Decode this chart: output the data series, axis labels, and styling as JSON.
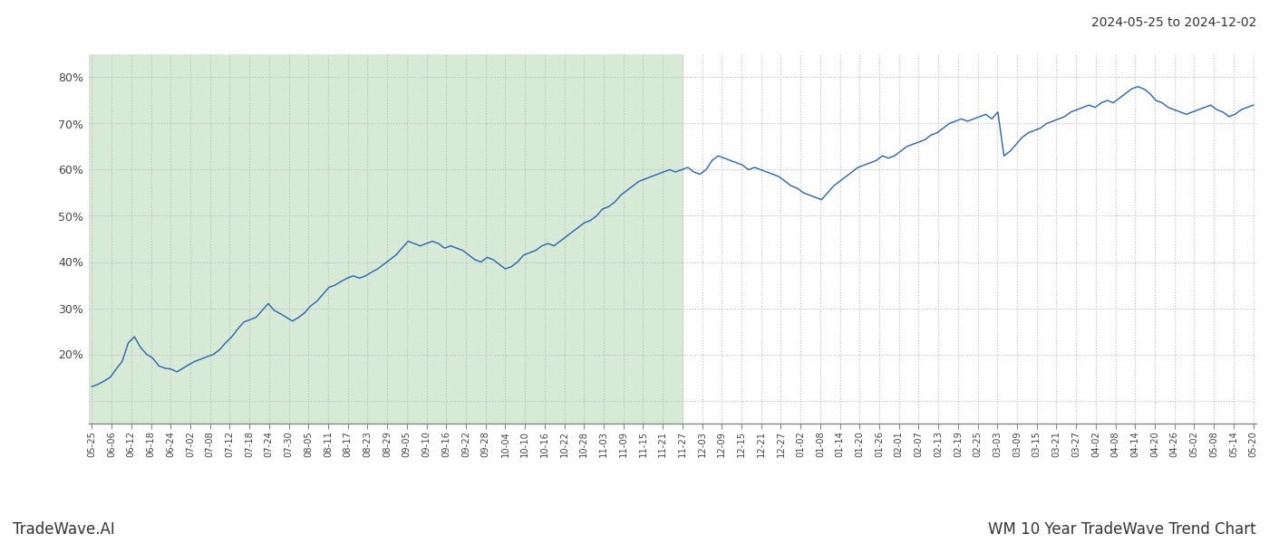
{
  "title_top_right": "2024-05-25 to 2024-12-02",
  "footer_left": "TradeWave.AI",
  "footer_right": "WM 10 Year TradeWave Trend Chart",
  "line_color": "#2464b4",
  "shading_color": "#d6ead6",
  "bg_color": "#ffffff",
  "grid_color": "#bbbbbb",
  "ylim": [
    5,
    85
  ],
  "ytick_positions": [
    10,
    20,
    30,
    40,
    50,
    60,
    70,
    80
  ],
  "ytick_labels": [
    "",
    "20%",
    "30%",
    "40%",
    "50%",
    "60%",
    "70%",
    "80%"
  ],
  "x_labels": [
    "05-25",
    "06-06",
    "06-12",
    "06-18",
    "06-24",
    "07-02",
    "07-08",
    "07-12",
    "07-18",
    "07-24",
    "07-30",
    "08-05",
    "08-11",
    "08-17",
    "08-23",
    "08-29",
    "09-05",
    "09-10",
    "09-16",
    "09-22",
    "09-28",
    "10-04",
    "10-10",
    "10-16",
    "10-22",
    "10-28",
    "11-03",
    "11-09",
    "11-15",
    "11-21",
    "11-27",
    "12-03",
    "12-09",
    "12-15",
    "12-21",
    "12-27",
    "01-02",
    "01-08",
    "01-14",
    "01-20",
    "01-26",
    "02-01",
    "02-07",
    "02-13",
    "02-19",
    "02-25",
    "03-03",
    "03-09",
    "03-15",
    "03-21",
    "03-27",
    "04-02",
    "04-08",
    "04-14",
    "04-20",
    "04-26",
    "05-02",
    "05-08",
    "05-14",
    "05-20"
  ],
  "shade_end_label": "11-27",
  "values": [
    13.0,
    13.5,
    14.2,
    15.0,
    16.8,
    18.5,
    22.5,
    23.8,
    21.5,
    20.0,
    19.2,
    17.5,
    17.0,
    16.8,
    16.2,
    17.0,
    17.8,
    18.5,
    19.0,
    19.5,
    20.0,
    21.0,
    22.5,
    23.8,
    25.5,
    27.0,
    27.5,
    28.0,
    29.5,
    31.0,
    29.5,
    28.8,
    28.0,
    27.2,
    28.0,
    29.0,
    30.5,
    31.5,
    33.0,
    34.5,
    35.0,
    35.8,
    36.5,
    37.0,
    36.5,
    37.0,
    37.8,
    38.5,
    39.5,
    40.5,
    41.5,
    43.0,
    44.5,
    44.0,
    43.5,
    44.0,
    44.5,
    44.0,
    43.0,
    43.5,
    43.0,
    42.5,
    41.5,
    40.5,
    40.0,
    41.0,
    40.5,
    39.5,
    38.5,
    39.0,
    40.0,
    41.5,
    42.0,
    42.5,
    43.5,
    44.0,
    43.5,
    44.5,
    45.5,
    46.5,
    47.5,
    48.5,
    49.0,
    50.0,
    51.5,
    52.0,
    53.0,
    54.5,
    55.5,
    56.5,
    57.5,
    58.0,
    58.5,
    59.0,
    59.5,
    60.0,
    59.5,
    60.0,
    60.5,
    59.5,
    59.0,
    60.0,
    62.0,
    63.0,
    62.5,
    62.0,
    61.5,
    61.0,
    60.0,
    60.5,
    60.0,
    59.5,
    59.0,
    58.5,
    57.5,
    56.5,
    56.0,
    55.0,
    54.5,
    54.0,
    53.5,
    55.0,
    56.5,
    57.5,
    58.5,
    59.5,
    60.5,
    61.0,
    61.5,
    62.0,
    63.0,
    62.5,
    63.0,
    64.0,
    65.0,
    65.5,
    66.0,
    66.5,
    67.5,
    68.0,
    69.0,
    70.0,
    70.5,
    71.0,
    70.5,
    71.0,
    71.5,
    72.0,
    71.0,
    72.5,
    63.0,
    64.0,
    65.5,
    67.0,
    68.0,
    68.5,
    69.0,
    70.0,
    70.5,
    71.0,
    71.5,
    72.5,
    73.0,
    73.5,
    74.0,
    73.5,
    74.5,
    75.0,
    74.5,
    75.5,
    76.5,
    77.5,
    78.0,
    77.5,
    76.5,
    75.0,
    74.5,
    73.5,
    73.0,
    72.5,
    72.0,
    72.5,
    73.0,
    73.5,
    74.0,
    73.0,
    72.5,
    71.5,
    72.0,
    73.0,
    73.5,
    74.0
  ]
}
